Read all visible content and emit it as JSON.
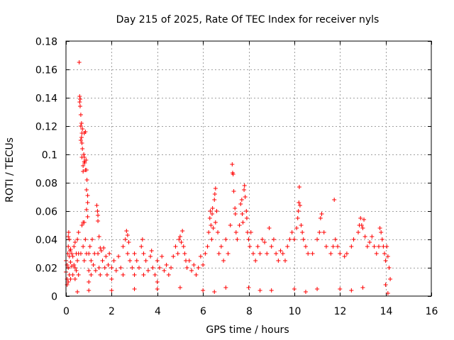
{
  "chart_data": {
    "type": "scatter",
    "title": "Day 215 of 2025, Rate Of TEC Index for receiver nyls",
    "xlabel": "GPS time / hours",
    "ylabel": "ROTI / TECUs",
    "xlim": [
      0,
      16
    ],
    "ylim": [
      0,
      0.18
    ],
    "xticks": [
      0,
      2,
      4,
      6,
      8,
      10,
      12,
      14,
      16
    ],
    "xtick_labels": [
      "0",
      "2",
      "4",
      "6",
      "8",
      "10",
      "12",
      "14",
      "16"
    ],
    "yticks": [
      0,
      0.02,
      0.04,
      0.06,
      0.08,
      0.1,
      0.12,
      0.14,
      0.16,
      0.18
    ],
    "ytick_labels": [
      "0",
      "0.02",
      "0.04",
      "0.06",
      "0.08",
      "0.1",
      "0.12",
      "0.14",
      "0.16",
      "0.18"
    ],
    "grid": true,
    "marker": "+",
    "color": "#ff0000",
    "series": [
      {
        "name": "ROTI",
        "points": [
          [
            0.0,
            0.025
          ],
          [
            0.0,
            0.017
          ],
          [
            0.05,
            0.022
          ],
          [
            0.05,
            0.012
          ],
          [
            0.05,
            0.008
          ],
          [
            0.08,
            0.03
          ],
          [
            0.1,
            0.042
          ],
          [
            0.1,
            0.035
          ],
          [
            0.1,
            0.02
          ],
          [
            0.1,
            0.01
          ],
          [
            0.12,
            0.045
          ],
          [
            0.15,
            0.04
          ],
          [
            0.15,
            0.028
          ],
          [
            0.15,
            0.015
          ],
          [
            0.18,
            0.032
          ],
          [
            0.2,
            0.033
          ],
          [
            0.2,
            0.024
          ],
          [
            0.2,
            0.012
          ],
          [
            0.25,
            0.021
          ],
          [
            0.25,
            0.03
          ],
          [
            0.3,
            0.028
          ],
          [
            0.3,
            0.015
          ],
          [
            0.35,
            0.035
          ],
          [
            0.35,
            0.022
          ],
          [
            0.4,
            0.038
          ],
          [
            0.4,
            0.02
          ],
          [
            0.4,
            0.012
          ],
          [
            0.45,
            0.03
          ],
          [
            0.45,
            0.018
          ],
          [
            0.5,
            0.04
          ],
          [
            0.5,
            0.025
          ],
          [
            0.55,
            0.045
          ],
          [
            0.55,
            0.03
          ],
          [
            0.55,
            0.015
          ],
          [
            0.58,
            0.165
          ],
          [
            0.6,
            0.141
          ],
          [
            0.6,
            0.137
          ],
          [
            0.62,
            0.139
          ],
          [
            0.62,
            0.134
          ],
          [
            0.65,
            0.128
          ],
          [
            0.65,
            0.12
          ],
          [
            0.65,
            0.11
          ],
          [
            0.68,
            0.122
          ],
          [
            0.68,
            0.112
          ],
          [
            0.7,
            0.115
          ],
          [
            0.7,
            0.108
          ],
          [
            0.7,
            0.098
          ],
          [
            0.72,
            0.118
          ],
          [
            0.72,
            0.104
          ],
          [
            0.75,
            0.092
          ],
          [
            0.75,
            0.088
          ],
          [
            0.75,
            0.052
          ],
          [
            0.75,
            0.035
          ],
          [
            0.78,
            0.1
          ],
          [
            0.8,
            0.115
          ],
          [
            0.8,
            0.098
          ],
          [
            0.8,
            0.095
          ],
          [
            0.8,
            0.052
          ],
          [
            0.82,
            0.094
          ],
          [
            0.85,
            0.116
          ],
          [
            0.85,
            0.089
          ],
          [
            0.85,
            0.04
          ],
          [
            0.88,
            0.096
          ],
          [
            0.9,
            0.089
          ],
          [
            0.9,
            0.075
          ],
          [
            0.9,
            0.061
          ],
          [
            0.92,
            0.082
          ],
          [
            0.95,
            0.071
          ],
          [
            0.95,
            0.066
          ],
          [
            0.95,
            0.056
          ],
          [
            0.7,
            0.05
          ],
          [
            0.65,
            0.03
          ],
          [
            0.8,
            0.025
          ],
          [
            0.9,
            0.03
          ],
          [
            1.0,
            0.03
          ],
          [
            1.0,
            0.018
          ],
          [
            1.0,
            0.01
          ],
          [
            1.05,
            0.035
          ],
          [
            1.1,
            0.025
          ],
          [
            1.1,
            0.015
          ],
          [
            1.15,
            0.04
          ],
          [
            1.2,
            0.022
          ],
          [
            1.25,
            0.03
          ],
          [
            1.3,
            0.018
          ],
          [
            1.35,
            0.064
          ],
          [
            1.38,
            0.06
          ],
          [
            1.4,
            0.057
          ],
          [
            1.4,
            0.053
          ],
          [
            1.4,
            0.03
          ],
          [
            1.45,
            0.042
          ],
          [
            1.45,
            0.02
          ],
          [
            1.5,
            0.034
          ],
          [
            1.5,
            0.015
          ],
          [
            1.55,
            0.032
          ],
          [
            1.6,
            0.025
          ],
          [
            1.65,
            0.034
          ],
          [
            1.7,
            0.02
          ],
          [
            1.75,
            0.028
          ],
          [
            1.8,
            0.015
          ],
          [
            1.85,
            0.022
          ],
          [
            1.9,
            0.03
          ],
          [
            2.0,
            0.02
          ],
          [
            2.0,
            0.012
          ],
          [
            2.1,
            0.025
          ],
          [
            2.2,
            0.018
          ],
          [
            2.3,
            0.028
          ],
          [
            2.4,
            0.02
          ],
          [
            2.5,
            0.035
          ],
          [
            2.5,
            0.015
          ],
          [
            2.6,
            0.04
          ],
          [
            2.65,
            0.046
          ],
          [
            2.7,
            0.043
          ],
          [
            2.7,
            0.03
          ],
          [
            2.75,
            0.038
          ],
          [
            2.8,
            0.025
          ],
          [
            2.9,
            0.02
          ],
          [
            3.0,
            0.03
          ],
          [
            3.0,
            0.015
          ],
          [
            3.1,
            0.025
          ],
          [
            3.2,
            0.02
          ],
          [
            3.3,
            0.035
          ],
          [
            3.35,
            0.04
          ],
          [
            3.4,
            0.03
          ],
          [
            3.4,
            0.015
          ],
          [
            3.5,
            0.025
          ],
          [
            3.6,
            0.018
          ],
          [
            3.7,
            0.028
          ],
          [
            3.75,
            0.032
          ],
          [
            3.8,
            0.02
          ],
          [
            3.9,
            0.015
          ],
          [
            4.0,
            0.025
          ],
          [
            4.0,
            0.01
          ],
          [
            4.1,
            0.02
          ],
          [
            4.2,
            0.028
          ],
          [
            4.3,
            0.018
          ],
          [
            4.4,
            0.022
          ],
          [
            4.5,
            0.015
          ],
          [
            4.6,
            0.02
          ],
          [
            4.7,
            0.028
          ],
          [
            4.8,
            0.035
          ],
          [
            4.9,
            0.03
          ],
          [
            4.95,
            0.04
          ],
          [
            5.0,
            0.042
          ],
          [
            5.05,
            0.038
          ],
          [
            5.1,
            0.046
          ],
          [
            5.15,
            0.035
          ],
          [
            5.2,
            0.03
          ],
          [
            5.25,
            0.025
          ],
          [
            5.3,
            0.02
          ],
          [
            5.4,
            0.025
          ],
          [
            5.5,
            0.018
          ],
          [
            5.6,
            0.022
          ],
          [
            5.7,
            0.015
          ],
          [
            5.8,
            0.02
          ],
          [
            5.9,
            0.028
          ],
          [
            6.0,
            0.022
          ],
          [
            6.1,
            0.03
          ],
          [
            6.2,
            0.035
          ],
          [
            6.25,
            0.045
          ],
          [
            6.3,
            0.055
          ],
          [
            6.32,
            0.06
          ],
          [
            6.35,
            0.05
          ],
          [
            6.38,
            0.04
          ],
          [
            6.4,
            0.058
          ],
          [
            6.42,
            0.062
          ],
          [
            6.45,
            0.048
          ],
          [
            6.5,
            0.068
          ],
          [
            6.52,
            0.072
          ],
          [
            6.55,
            0.076
          ],
          [
            6.55,
            0.052
          ],
          [
            6.6,
            0.06
          ],
          [
            6.65,
            0.045
          ],
          [
            6.7,
            0.03
          ],
          [
            6.8,
            0.035
          ],
          [
            6.9,
            0.025
          ],
          [
            7.0,
            0.04
          ],
          [
            7.1,
            0.03
          ],
          [
            7.2,
            0.05
          ],
          [
            7.28,
            0.093
          ],
          [
            7.3,
            0.087
          ],
          [
            7.32,
            0.086
          ],
          [
            7.35,
            0.074
          ],
          [
            7.4,
            0.062
          ],
          [
            7.42,
            0.058
          ],
          [
            7.45,
            0.045
          ],
          [
            7.5,
            0.04
          ],
          [
            7.6,
            0.05
          ],
          [
            7.65,
            0.065
          ],
          [
            7.7,
            0.068
          ],
          [
            7.72,
            0.058
          ],
          [
            7.75,
            0.052
          ],
          [
            7.8,
            0.075
          ],
          [
            7.82,
            0.078
          ],
          [
            7.85,
            0.07
          ],
          [
            7.9,
            0.06
          ],
          [
            7.92,
            0.055
          ],
          [
            7.95,
            0.045
          ],
          [
            8.0,
            0.04
          ],
          [
            8.05,
            0.035
          ],
          [
            8.1,
            0.045
          ],
          [
            8.2,
            0.03
          ],
          [
            8.3,
            0.025
          ],
          [
            8.4,
            0.035
          ],
          [
            8.5,
            0.03
          ],
          [
            8.6,
            0.04
          ],
          [
            8.7,
            0.038
          ],
          [
            8.8,
            0.03
          ],
          [
            8.9,
            0.048
          ],
          [
            9.0,
            0.035
          ],
          [
            9.1,
            0.04
          ],
          [
            9.2,
            0.03
          ],
          [
            9.3,
            0.025
          ],
          [
            9.4,
            0.032
          ],
          [
            9.5,
            0.03
          ],
          [
            9.6,
            0.025
          ],
          [
            9.7,
            0.035
          ],
          [
            9.8,
            0.04
          ],
          [
            9.9,
            0.045
          ],
          [
            10.0,
            0.04
          ],
          [
            10.1,
            0.048
          ],
          [
            10.15,
            0.055
          ],
          [
            10.18,
            0.06
          ],
          [
            10.2,
            0.066
          ],
          [
            10.22,
            0.077
          ],
          [
            10.25,
            0.064
          ],
          [
            10.3,
            0.05
          ],
          [
            10.35,
            0.045
          ],
          [
            10.4,
            0.04
          ],
          [
            10.5,
            0.035
          ],
          [
            10.6,
            0.03
          ],
          [
            10.8,
            0.03
          ],
          [
            11.0,
            0.04
          ],
          [
            11.1,
            0.045
          ],
          [
            11.15,
            0.055
          ],
          [
            11.2,
            0.058
          ],
          [
            11.3,
            0.045
          ],
          [
            11.4,
            0.035
          ],
          [
            11.6,
            0.03
          ],
          [
            11.7,
            0.035
          ],
          [
            11.75,
            0.068
          ],
          [
            11.8,
            0.04
          ],
          [
            11.9,
            0.035
          ],
          [
            12.0,
            0.03
          ],
          [
            12.2,
            0.028
          ],
          [
            12.3,
            0.03
          ],
          [
            12.5,
            0.035
          ],
          [
            12.6,
            0.04
          ],
          [
            12.8,
            0.045
          ],
          [
            12.85,
            0.05
          ],
          [
            12.9,
            0.055
          ],
          [
            12.95,
            0.05
          ],
          [
            13.0,
            0.048
          ],
          [
            13.05,
            0.054
          ],
          [
            13.1,
            0.042
          ],
          [
            13.2,
            0.035
          ],
          [
            13.3,
            0.038
          ],
          [
            13.4,
            0.042
          ],
          [
            13.5,
            0.035
          ],
          [
            13.6,
            0.03
          ],
          [
            13.7,
            0.035
          ],
          [
            13.75,
            0.048
          ],
          [
            13.8,
            0.045
          ],
          [
            13.85,
            0.04
          ],
          [
            13.9,
            0.035
          ],
          [
            13.95,
            0.03
          ],
          [
            14.0,
            0.025
          ],
          [
            14.05,
            0.035
          ],
          [
            14.1,
            0.028
          ],
          [
            14.15,
            0.02
          ],
          [
            14.2,
            0.012
          ],
          [
            14.0,
            0.008
          ],
          [
            12.0,
            0.005
          ],
          [
            10.0,
            0.005
          ],
          [
            8.0,
            0.006
          ],
          [
            6.0,
            0.004
          ],
          [
            4.0,
            0.005
          ],
          [
            2.0,
            0.004
          ],
          [
            5.0,
            0.006
          ],
          [
            7.0,
            0.006
          ],
          [
            9.0,
            0.004
          ],
          [
            11.0,
            0.005
          ],
          [
            13.0,
            0.006
          ],
          [
            3.0,
            0.005
          ],
          [
            1.0,
            0.004
          ],
          [
            0.5,
            0.003
          ],
          [
            14.1,
            0.002
          ],
          [
            12.5,
            0.004
          ],
          [
            6.5,
            0.003
          ],
          [
            8.5,
            0.004
          ],
          [
            10.5,
            0.003
          ]
        ]
      }
    ]
  }
}
